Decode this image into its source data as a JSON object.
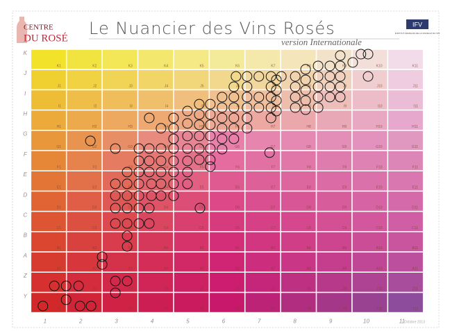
{
  "header": {
    "logo_top": "CENTRE",
    "logo_bottom": "DU ROSÉ",
    "title": "Le Nuancier des Vins Rosés",
    "subtitle": "version Internationale",
    "partner_logo": "IFV",
    "partner_name": "INSTITUT FRANÇAIS DE LA VIGNE ET DU VIN"
  },
  "footer": {
    "date": "Octobre 2013"
  },
  "chart_data": {
    "type": "scatter",
    "rows": [
      "Y",
      "Z",
      "A",
      "B",
      "C",
      "D",
      "E",
      "F",
      "G",
      "H",
      "I",
      "J",
      "K"
    ],
    "columns": [
      "1",
      "2",
      "3",
      "4",
      "5",
      "6",
      "7",
      "8",
      "9",
      "10",
      "11"
    ],
    "cells": [
      [
        "Y1",
        "Y2",
        "Y3",
        "Y4",
        "Y5",
        "Y6",
        "Y7",
        "Y8",
        "Y9",
        "Y10",
        "Y11"
      ],
      [
        "Z1",
        "Z2",
        "Z3",
        "Z4",
        "Z5",
        "Z6",
        "Z7",
        "Z8",
        "Z9",
        "Z10",
        "Z11"
      ],
      [
        "A1",
        "A2",
        "A3",
        "A4",
        "A5",
        "A6",
        "A7",
        "A8",
        "A9",
        "A10",
        "A11"
      ],
      [
        "B1",
        "B2",
        "B3",
        "B4",
        "B5",
        "B6",
        "B7",
        "B8",
        "B9",
        "B10",
        "B11"
      ],
      [
        "C1",
        "C2",
        "C3",
        "C4",
        "C5",
        "C6",
        "C7",
        "C8",
        "C9",
        "C10",
        "C11"
      ],
      [
        "D1",
        "D2",
        "D3",
        "D4",
        "D5",
        "D6",
        "D7",
        "D8",
        "D9",
        "D10",
        "D11"
      ],
      [
        "E1",
        "E2",
        "E3",
        "E4",
        "E5",
        "E6",
        "E7",
        "E8",
        "E9",
        "E10",
        "E11"
      ],
      [
        "F1",
        "F2",
        "F3",
        "F4",
        "F5",
        "F6",
        "F7",
        "F8",
        "F9",
        "F10",
        "F11"
      ],
      [
        "G1",
        "G2",
        "G3",
        "G4",
        "G5",
        "G6",
        "G7",
        "G8",
        "G9",
        "G10",
        "G11"
      ],
      [
        "H1",
        "H2",
        "H3",
        "H4",
        "H5",
        "H6",
        "H7",
        "H8",
        "H9",
        "H10",
        "H11"
      ],
      [
        "I1",
        "I2",
        "I3",
        "I4",
        "I5",
        "I6",
        "I7",
        "I8",
        "I9",
        "I10",
        "I11"
      ],
      [
        "J1",
        "J2",
        "J3",
        "J4",
        "J5",
        "J6",
        "J7",
        "J8",
        "J9",
        "J10",
        "J11"
      ],
      [
        "K1",
        "K2",
        "K3",
        "K4",
        "K5",
        "K6",
        "K7",
        "K8",
        "K9",
        "K10",
        "K11"
      ]
    ],
    "row_colors": [
      [
        "#d3282a",
        "#c8186c",
        "#8d4c9c"
      ],
      [
        "#d63030",
        "#cc1d70",
        "#a84c9c"
      ],
      [
        "#d73a2e",
        "#d02474",
        "#bc509e"
      ],
      [
        "#da4630",
        "#d42e78",
        "#c8559e"
      ],
      [
        "#dd5532",
        "#d83a7e",
        "#d05ea4"
      ],
      [
        "#e06434",
        "#dc4888",
        "#d46aaa"
      ],
      [
        "#e37536",
        "#e05a92",
        "#d877b0"
      ],
      [
        "#e68738",
        "#e46c9e",
        "#dc86b8"
      ],
      [
        "#e8983a",
        "#e880aa",
        "#e097c0"
      ],
      [
        "#ebaa3a",
        "#eea896",
        "#e6a8cc"
      ],
      [
        "#eebd36",
        "#f0c090",
        "#ebbcd6"
      ],
      [
        "#f0d030",
        "#f2d88c",
        "#efcce0"
      ],
      [
        "#f2e22a",
        "#f4eb9a",
        "#f3dcea"
      ]
    ],
    "marker_color": "#111111",
    "xlim": [
      0.5,
      11.5
    ],
    "ylim": [
      0.5,
      13.5
    ],
    "x": [
      0.84,
      1.16,
      1.49,
      1.84,
      1.49,
      1.88,
      2.19,
      2.5,
      2.5,
      2.87,
      2.87,
      3.2,
      3.2,
      3.2,
      2.87,
      3.2,
      3.53,
      3.82,
      2.87,
      3.2,
      3.53,
      3.82,
      2.87,
      3.2,
      3.53,
      3.88,
      2.87,
      3.2,
      3.53,
      3.88,
      3.2,
      3.53,
      3.82,
      3.53,
      3.82,
      3.53,
      3.82,
      2.17,
      2.87,
      4.15,
      4.15,
      4.15,
      4.15,
      4.15,
      4.15,
      3.82,
      4.5,
      4.5,
      4.5,
      4.5,
      4.5,
      4.5,
      4.5,
      4.5,
      4.89,
      4.89,
      4.89,
      4.89,
      4.89,
      4.89,
      4.89,
      5.22,
      5.22,
      5.22,
      5.22,
      5.22,
      5.22,
      5.24,
      5.53,
      5.53,
      5.53,
      5.53,
      5.53,
      5.53,
      5.53,
      5.86,
      5.86,
      5.86,
      5.86,
      5.86,
      5.86,
      6.19,
      6.19,
      6.19,
      6.19,
      6.19,
      6.19,
      6.25,
      6.56,
      6.56,
      6.56,
      6.56,
      6.56,
      6.56,
      6.89,
      6.89,
      6.89,
      7.23,
      7.23,
      7.23,
      7.23,
      7.23,
      7.38,
      7.38,
      7.38,
      7.38,
      7.19,
      7.52,
      7.91,
      7.91,
      7.91,
      7.91,
      8.2,
      8.2,
      8.2,
      8.2,
      8.2,
      8.55,
      8.55,
      8.55,
      8.55,
      8.55,
      8.88,
      8.88,
      8.88,
      8.88,
      9.17,
      9.17,
      9.17,
      9.17,
      9.17,
      9.52,
      9.75,
      9.95,
      9.95
    ],
    "y": [
      0.83,
      1.82,
      1.82,
      1.82,
      1.14,
      0.83,
      0.83,
      3.26,
      2.88,
      2.06,
      1.48,
      2.06,
      4.29,
      3.77,
      4.9,
      4.9,
      4.9,
      4.9,
      5.66,
      5.66,
      5.66,
      5.66,
      6.27,
      6.27,
      6.27,
      6.27,
      6.86,
      6.86,
      6.86,
      6.86,
      7.44,
      7.44,
      7.44,
      7.99,
      7.99,
      8.6,
      8.6,
      8.98,
      8.6,
      8.6,
      7.99,
      7.44,
      6.86,
      6.27,
      9.6,
      10.11,
      10.11,
      9.6,
      9.08,
      8.6,
      7.99,
      7.44,
      6.86,
      6.27,
      10.45,
      9.84,
      9.22,
      8.6,
      7.99,
      7.44,
      6.86,
      10.79,
      10.28,
      9.77,
      9.22,
      8.6,
      8.05,
      5.66,
      10.79,
      10.28,
      9.77,
      9.22,
      8.6,
      8.05,
      7.71,
      11.14,
      10.62,
      10.11,
      9.6,
      9.08,
      8.57,
      11.65,
      11.14,
      10.62,
      10.11,
      9.6,
      9.08,
      12.16,
      12.16,
      11.65,
      11.14,
      10.62,
      10.11,
      9.6,
      12.16,
      11.14,
      10.62,
      12.16,
      11.65,
      11.14,
      10.62,
      10.11,
      11.99,
      11.48,
      10.97,
      10.45,
      8.4,
      12.16,
      12.16,
      11.65,
      11.14,
      10.62,
      12.51,
      11.99,
      11.48,
      10.97,
      10.52,
      12.68,
      12.16,
      11.65,
      11.14,
      10.62,
      12.68,
      12.16,
      11.65,
      11.14,
      13.19,
      12.68,
      12.16,
      11.65,
      11.14,
      12.85,
      13.26,
      13.26,
      12.16
    ]
  }
}
